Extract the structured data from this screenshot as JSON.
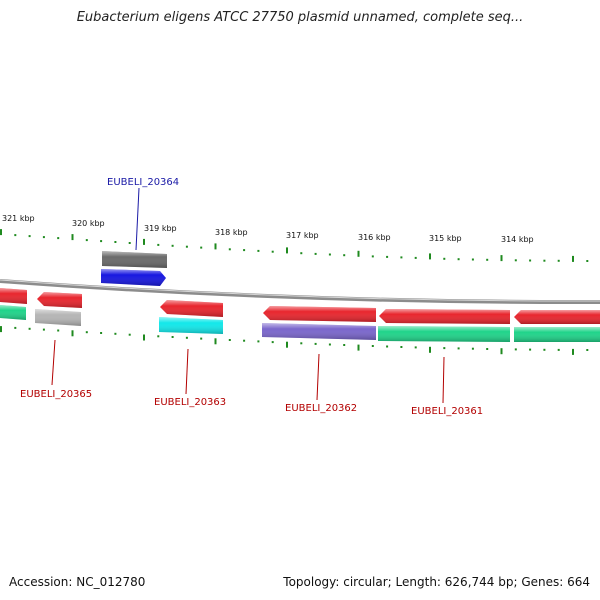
{
  "title": "Eubacterium eligens ATCC 27750 plasmid unnamed, complete seq...",
  "footer": {
    "accession": "Accession: NC_012780",
    "topology": "Topology: circular; Length: 626,744 bp; Genes: 664"
  },
  "colors": {
    "backbone": "#8c8c8c",
    "tick": "#1f8a1f",
    "label_above": "#1a1aa6",
    "label_below": "#b30000",
    "red": "#e8262e",
    "green": "#20d48a",
    "cyan": "#12e8ea",
    "blue": "#1717e0",
    "dark_gray": "#6a6a6a",
    "light_gray": "#b5b5b5",
    "purple": "#7a66cc"
  },
  "ruler": {
    "labels": [
      "321 kbp",
      "320 kbp",
      "319 kbp",
      "318 kbp",
      "317 kbp",
      "316 kbp",
      "315 kbp",
      "314 kbp"
    ]
  },
  "gene_labels": {
    "above": [
      "EUBELI_20364"
    ],
    "below": [
      "EUBELI_20365",
      "EUBELI_20363",
      "EUBELI_20362",
      "EUBELI_20361"
    ]
  }
}
